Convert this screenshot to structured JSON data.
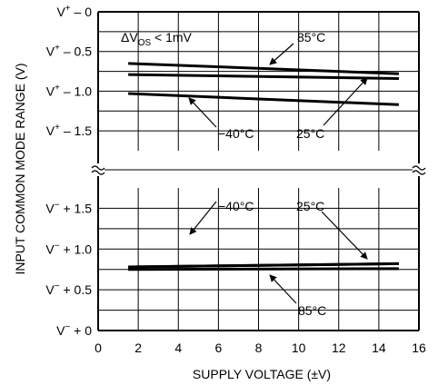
{
  "chart_data": {
    "type": "line",
    "xlabel": "SUPPLY VOLTAGE (±V)",
    "ylabel": "INPUT COMMON MODE RANGE (V)",
    "xlim": [
      0,
      16
    ],
    "x_ticks": [
      "0",
      "2",
      "4",
      "6",
      "8",
      "10",
      "12",
      "14",
      "16"
    ],
    "grid": true,
    "upper_panel": {
      "ylim": [
        0,
        1.75
      ],
      "y_ticks": [
        {
          "value": 0,
          "base": "V",
          "sign": "+",
          "offset": " – 0"
        },
        {
          "value": 0.5,
          "base": "V",
          "sign": "+",
          "offset": " – 0.5"
        },
        {
          "value": 1.0,
          "base": "V",
          "sign": "+",
          "offset": " – 1.0"
        },
        {
          "value": 1.5,
          "base": "V",
          "sign": "+",
          "offset": " – 1.5"
        }
      ],
      "series": [
        {
          "name": "85°C",
          "x": [
            1.5,
            15
          ],
          "y": [
            0.65,
            0.78
          ]
        },
        {
          "name": "25°C",
          "x": [
            1.5,
            15
          ],
          "y": [
            0.79,
            0.84
          ]
        },
        {
          "name": "−40°C",
          "x": [
            1.5,
            15
          ],
          "y": [
            1.03,
            1.17
          ]
        }
      ]
    },
    "lower_panel": {
      "ylim": [
        0,
        1.75
      ],
      "y_ticks": [
        {
          "value": 1.5,
          "base": "V",
          "sign": "−",
          "offset": " + 1.5"
        },
        {
          "value": 1.0,
          "base": "V",
          "sign": "−",
          "offset": " + 1.0"
        },
        {
          "value": 0.5,
          "base": "V",
          "sign": "−",
          "offset": " + 0.5"
        },
        {
          "value": 0,
          "base": "V",
          "sign": "−",
          "offset": " + 0"
        }
      ],
      "series": [
        {
          "name": "−40°C",
          "x": [
            1.5,
            15
          ],
          "y": [
            0.78,
            0.82
          ]
        },
        {
          "name": "25°C",
          "x": [
            1.5,
            15
          ],
          "y": [
            0.78,
            0.82
          ]
        },
        {
          "name": "85°C",
          "x": [
            1.5,
            15
          ],
          "y": [
            0.75,
            0.76
          ]
        }
      ]
    },
    "annotations": {
      "condition_delta": "ΔV",
      "condition_sub": "OS",
      "condition_rest": " < 1mV",
      "upper_85": "85°C",
      "upper_m40": "−40°C",
      "upper_25": "25°C",
      "lower_m40": "−40°C",
      "lower_25": "25°C",
      "lower_85": "85°C"
    }
  }
}
